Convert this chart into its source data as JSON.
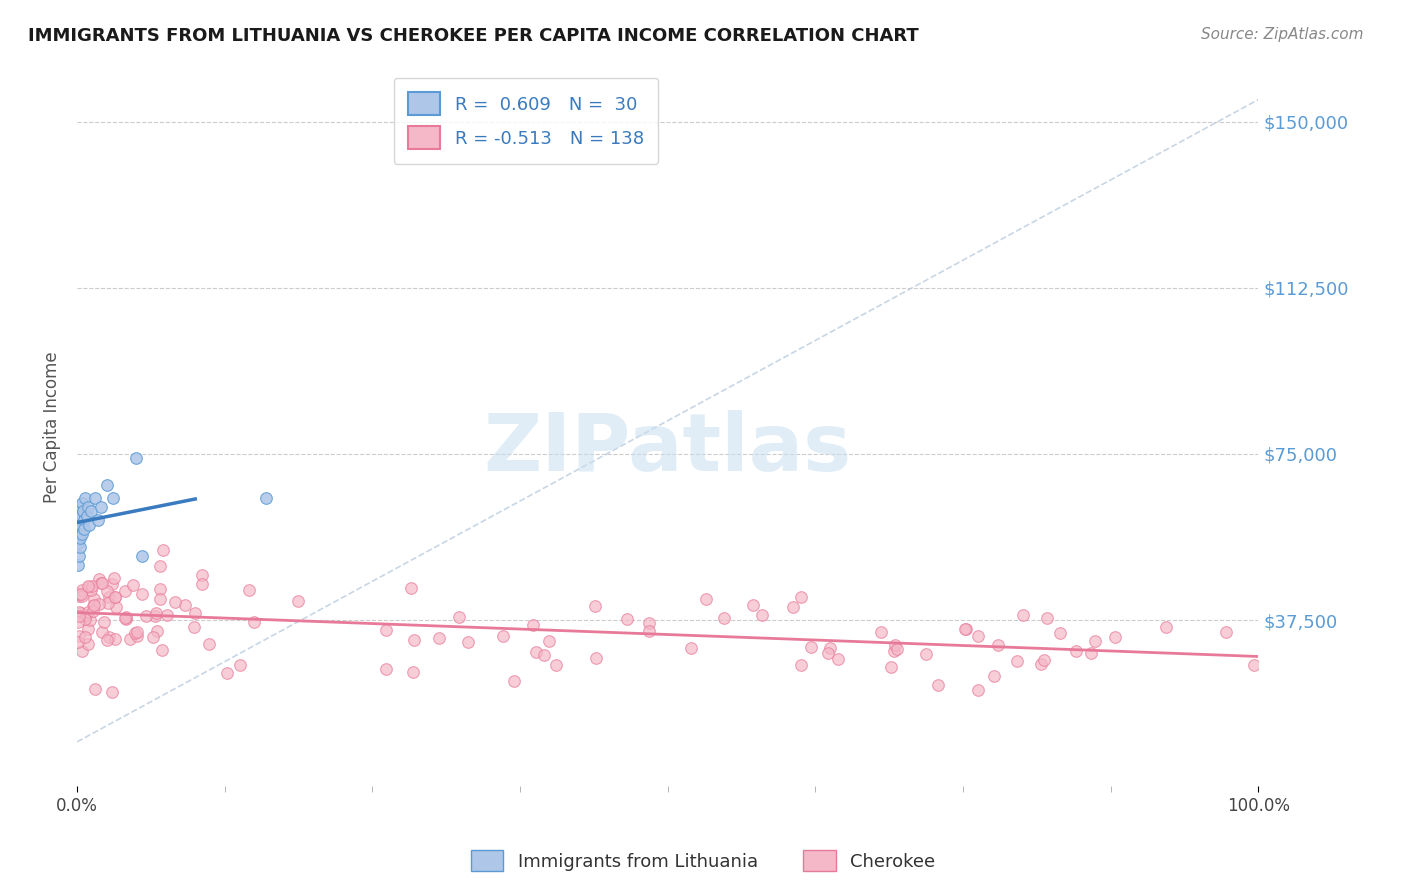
{
  "title": "IMMIGRANTS FROM LITHUANIA VS CHEROKEE PER CAPITA INCOME CORRELATION CHART",
  "source": "Source: ZipAtlas.com",
  "ylabel": "Per Capita Income",
  "ytick_labels": [
    "$37,500",
    "$75,000",
    "$112,500",
    "$150,000"
  ],
  "ytick_values": [
    37500,
    75000,
    112500,
    150000
  ],
  "ylim": [
    0,
    162000
  ],
  "xlim": [
    0,
    100
  ],
  "blue_color": "#5b9bd5",
  "pink_color": "#e87a99",
  "blue_face": "#aec6e8",
  "pink_face": "#f4b8c8",
  "trend_blue_color": "#3a7abf",
  "trend_pink_color": "#e87a99",
  "diag_color": "#bbccdd",
  "watermark": "ZIPatlas",
  "watermark_color": "#c8dff0",
  "R_blue": 0.609,
  "N_blue": 30,
  "R_pink": -0.513,
  "N_pink": 138,
  "legend_label_color": "#3a7abf",
  "blue_scatter_seed": 42,
  "pink_scatter_seed": 99
}
